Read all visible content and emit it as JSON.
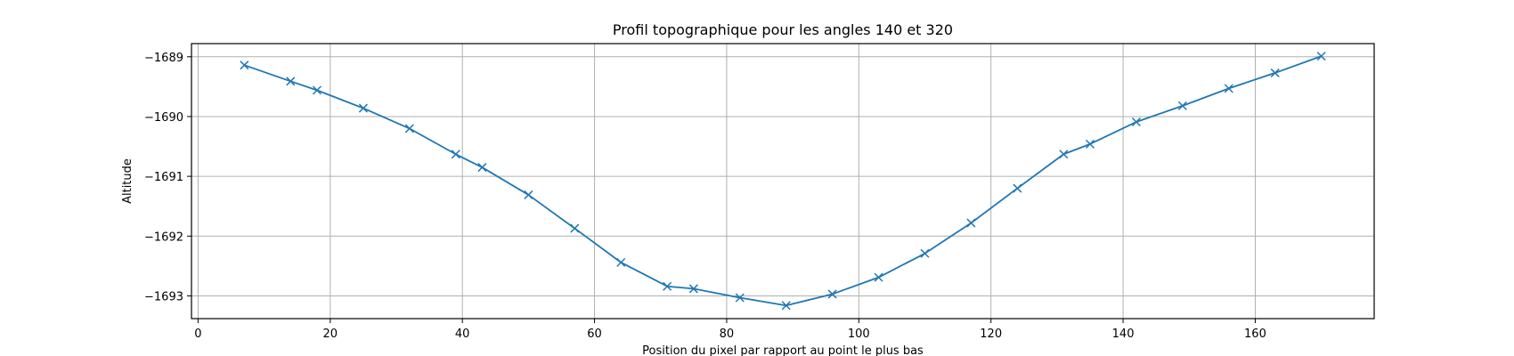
{
  "chart_data": {
    "type": "line",
    "title": "Profil topographique pour les angles 140 et 320",
    "xlabel": "Position du pixel par rapport au point le plus bas",
    "ylabel": "Altitude",
    "xlim": [
      -1,
      178
    ],
    "ylim": [
      -1693.38,
      -1688.78
    ],
    "grid": true,
    "x_ticks": [
      0,
      20,
      40,
      60,
      80,
      100,
      120,
      140,
      160
    ],
    "y_ticks": [
      -1693,
      -1692,
      -1691,
      -1690,
      -1689
    ],
    "x_tick_labels": [
      "0",
      "20",
      "40",
      "60",
      "80",
      "100",
      "120",
      "140",
      "160"
    ],
    "y_tick_labels": [
      "−1693",
      "−1692",
      "−1691",
      "−1690",
      "−1689"
    ],
    "marker": "x",
    "colors": {
      "line": "#1f77b4",
      "grid": "#b0b0b0",
      "axes": "#000000",
      "background": "#ffffff"
    },
    "series": [
      {
        "x": [
          7,
          14,
          18,
          25,
          32,
          39,
          43,
          50,
          57,
          64,
          71,
          75,
          82,
          89,
          96,
          103,
          110,
          117,
          124,
          131,
          135,
          142,
          149,
          156,
          163,
          170
        ],
        "y": [
          -1689.14,
          -1689.41,
          -1689.56,
          -1689.86,
          -1690.2,
          -1690.63,
          -1690.85,
          -1691.31,
          -1691.87,
          -1692.44,
          -1692.84,
          -1692.88,
          -1693.03,
          -1693.16,
          -1692.97,
          -1692.69,
          -1692.29,
          -1691.78,
          -1691.2,
          -1690.63,
          -1690.46,
          -1690.09,
          -1689.82,
          -1689.53,
          -1689.27,
          -1688.99
        ]
      }
    ]
  }
}
